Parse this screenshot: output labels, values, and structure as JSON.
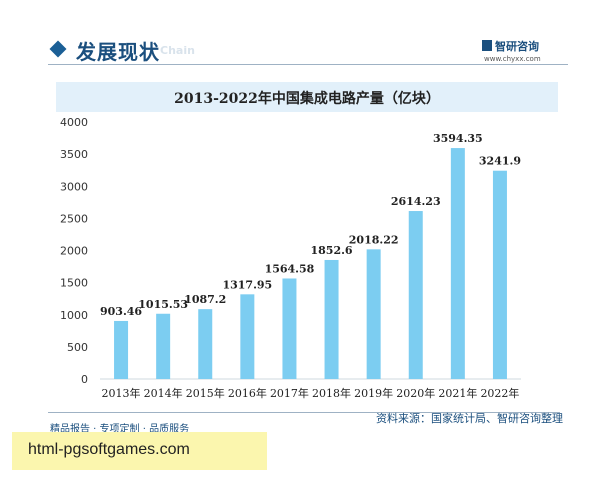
{
  "header": {
    "section_title": "发展现状",
    "section_title_en": "Chain",
    "brand": "智研咨询",
    "url": "www.chyxx.com"
  },
  "chart_data": {
    "type": "bar",
    "title": "2013-2022年中国集成电路产量（亿块）",
    "categories": [
      "2013年",
      "2014年",
      "2015年",
      "2016年",
      "2017年",
      "2018年",
      "2019年",
      "2020年",
      "2021年",
      "2022年"
    ],
    "values": [
      903.46,
      1015.53,
      1087.2,
      1317.95,
      1564.58,
      1852.6,
      2018.22,
      2614.23,
      3594.35,
      3241.9
    ],
    "value_labels": [
      "903.46",
      "1015.53",
      "1087.2",
      "1317.95",
      "1564.58",
      "1852.6",
      "2018.22",
      "2614.23",
      "3594.35",
      "3241.9"
    ],
    "yticks": [
      "0",
      "500",
      "1000",
      "1500",
      "2000",
      "2500",
      "3000",
      "3500",
      "4000"
    ],
    "ylim": [
      0,
      4000
    ],
    "bar_color": "#7ccdf1",
    "grid": false,
    "legend": "none"
  },
  "footer": {
    "tagline": "精品报告 · 专项定制 · 品质服务",
    "source": "资料来源：国家统计局、智研咨询整理"
  },
  "banner": {
    "text": "html-pgsoftgames.com",
    "color": "#fbf6ae"
  }
}
